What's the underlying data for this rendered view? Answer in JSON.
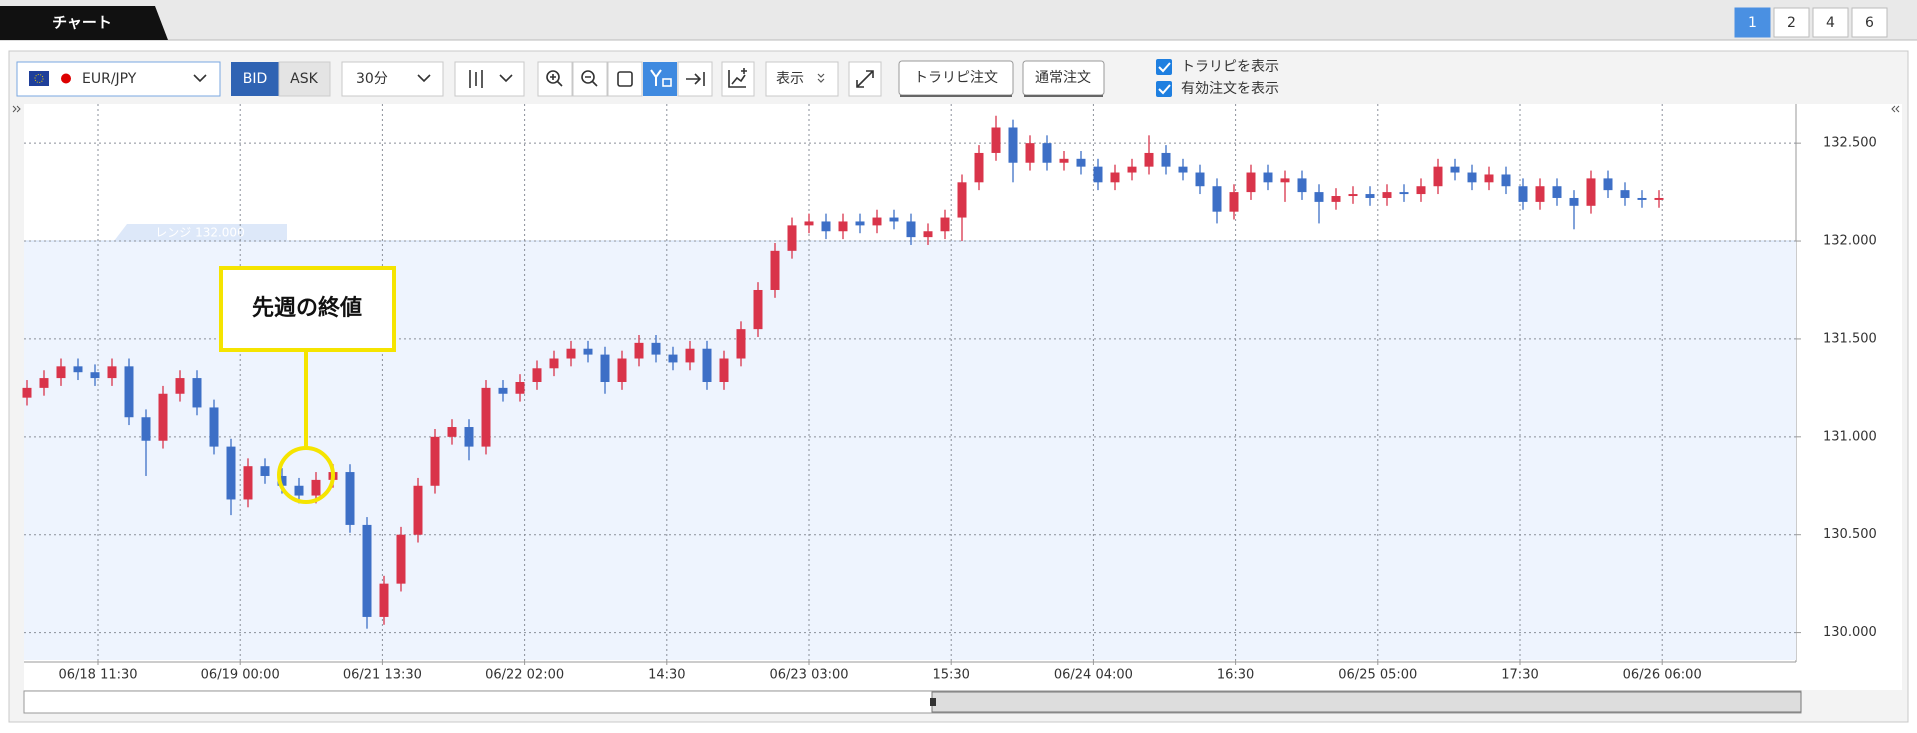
{
  "tab": "チャート",
  "pages": [
    "1",
    "2",
    "4",
    "6"
  ],
  "toolbar": {
    "symbol": "EUR/JPY",
    "bid": "BID",
    "ask": "ASK",
    "interval": "30分",
    "display": "表示",
    "trap_order": "トラリピ注文",
    "normal_order": "通常注文",
    "checkboxes": [
      "トラリピを表示",
      "有効注文を表示"
    ]
  },
  "chart_data": {
    "type": "candlestick",
    "annotation": "先週の終値",
    "range_label": "レンジ 132.000",
    "range_value": 132,
    "x_labels": [
      "06/18 11:30",
      "06/19 00:00",
      "06/21 13:30",
      "06/22 02:00",
      "14:30",
      "06/23 03:00",
      "15:30",
      "06/24 04:00",
      "16:30",
      "06/25 05:00",
      "17:30",
      "06/26 06:00"
    ],
    "up_color": "#d9344a",
    "down_color": "#3d6fc6",
    "ylim": [
      129.86,
      132.7
    ],
    "yticks": [
      {
        "value": 130,
        "label": "130.000"
      },
      {
        "value": 130.5,
        "label": "130.500"
      },
      {
        "value": 131,
        "label": "131.000"
      },
      {
        "value": 131.5,
        "label": "131.500"
      },
      {
        "value": 132,
        "label": "132.000"
      },
      {
        "value": 132.5,
        "label": "132.500"
      }
    ],
    "grid": true,
    "open": [
      131.2,
      131.25,
      131.3,
      131.36,
      131.33,
      131.3,
      131.36,
      131.1,
      130.98,
      131.22,
      131.3,
      131.15,
      130.95,
      130.68,
      130.85,
      130.8,
      130.75,
      130.7,
      130.78,
      130.82,
      130.55,
      130.08,
      130.25,
      130.5,
      130.75,
      131.0,
      131.05,
      130.95,
      131.25,
      131.22,
      131.28,
      131.35,
      131.4,
      131.45,
      131.42,
      131.28,
      131.4,
      131.48,
      131.42,
      131.38,
      131.45,
      131.28,
      131.4,
      131.55,
      131.75,
      131.95,
      132.08,
      132.1,
      132.05,
      132.1,
      132.08,
      132.12,
      132.1,
      132.02,
      132.05,
      132.12,
      132.3,
      132.45,
      132.58,
      132.4,
      132.5,
      132.4,
      132.42,
      132.38,
      132.3,
      132.35,
      132.38,
      132.45,
      132.38,
      132.35,
      132.28,
      132.15,
      132.25,
      132.35,
      132.3,
      132.32,
      132.25,
      132.2,
      132.23,
      132.24,
      132.22,
      132.25,
      132.24,
      132.28,
      132.38,
      132.35,
      132.3,
      132.34,
      132.28,
      132.2,
      132.28,
      132.22,
      132.18,
      132.32,
      132.26,
      132.22,
      132.21
    ],
    "high": [
      131.29,
      131.34,
      131.4,
      131.4,
      131.37,
      131.4,
      131.4,
      131.14,
      131.26,
      131.34,
      131.34,
      131.19,
      130.99,
      130.89,
      130.89,
      130.84,
      130.79,
      130.82,
      130.86,
      130.86,
      130.59,
      130.29,
      130.54,
      130.79,
      131.04,
      131.09,
      131.09,
      131.29,
      131.29,
      131.32,
      131.39,
      131.44,
      131.49,
      131.49,
      131.46,
      131.44,
      131.52,
      131.52,
      131.46,
      131.49,
      131.49,
      131.44,
      131.59,
      131.79,
      131.99,
      132.12,
      132.14,
      132.14,
      132.14,
      132.14,
      132.16,
      132.16,
      132.14,
      132.09,
      132.16,
      132.34,
      132.49,
      132.64,
      132.62,
      132.54,
      132.54,
      132.46,
      132.46,
      132.42,
      132.39,
      132.42,
      132.54,
      132.49,
      132.42,
      132.39,
      132.32,
      132.29,
      132.39,
      132.39,
      132.36,
      132.36,
      132.29,
      132.27,
      132.28,
      132.28,
      132.29,
      132.29,
      132.32,
      132.42,
      132.42,
      132.39,
      132.38,
      132.38,
      132.32,
      132.32,
      132.32,
      132.26,
      132.36,
      132.36,
      132.3,
      132.26,
      132.26
    ],
    "low": [
      131.16,
      131.21,
      131.26,
      131.29,
      131.26,
      131.26,
      131.06,
      130.8,
      130.94,
      131.18,
      131.11,
      130.91,
      130.6,
      130.64,
      130.76,
      130.71,
      130.66,
      130.66,
      130.74,
      130.51,
      130.02,
      130.04,
      130.21,
      130.46,
      130.71,
      130.96,
      130.88,
      130.91,
      131.18,
      131.18,
      131.24,
      131.31,
      131.36,
      131.38,
      131.22,
      131.24,
      131.36,
      131.38,
      131.34,
      131.34,
      131.24,
      131.24,
      131.36,
      131.51,
      131.71,
      131.91,
      132.04,
      132.01,
      132.01,
      132.04,
      132.04,
      132.06,
      131.98,
      131.98,
      132.01,
      132.0,
      132.26,
      132.41,
      132.3,
      132.36,
      132.36,
      132.36,
      132.34,
      132.26,
      132.26,
      132.31,
      132.34,
      132.34,
      132.31,
      132.24,
      132.09,
      132.11,
      132.21,
      132.26,
      132.2,
      132.21,
      132.09,
      132.16,
      132.19,
      132.18,
      132.18,
      132.2,
      132.2,
      132.24,
      132.31,
      132.26,
      132.26,
      132.24,
      132.16,
      132.16,
      132.18,
      132.06,
      132.14,
      132.22,
      132.18,
      132.17,
      132.17
    ],
    "close": [
      131.25,
      131.3,
      131.36,
      131.33,
      131.3,
      131.36,
      131.1,
      130.98,
      131.22,
      131.3,
      131.15,
      130.95,
      130.68,
      130.85,
      130.8,
      130.75,
      130.7,
      130.78,
      130.82,
      130.55,
      130.08,
      130.25,
      130.5,
      130.75,
      131.0,
      131.05,
      130.95,
      131.25,
      131.22,
      131.28,
      131.35,
      131.4,
      131.45,
      131.42,
      131.28,
      131.4,
      131.48,
      131.42,
      131.38,
      131.45,
      131.28,
      131.4,
      131.55,
      131.75,
      131.95,
      132.08,
      132.1,
      132.05,
      132.1,
      132.08,
      132.12,
      132.1,
      132.02,
      132.05,
      132.12,
      132.3,
      132.45,
      132.58,
      132.4,
      132.5,
      132.4,
      132.42,
      132.38,
      132.3,
      132.35,
      132.38,
      132.45,
      132.38,
      132.35,
      132.28,
      132.15,
      132.25,
      132.35,
      132.3,
      132.32,
      132.25,
      132.2,
      132.23,
      132.24,
      132.22,
      132.25,
      132.24,
      132.28,
      132.38,
      132.35,
      132.3,
      132.34,
      132.28,
      132.2,
      132.28,
      132.22,
      132.18,
      132.32,
      132.26,
      132.22,
      132.21,
      132.22
    ]
  }
}
